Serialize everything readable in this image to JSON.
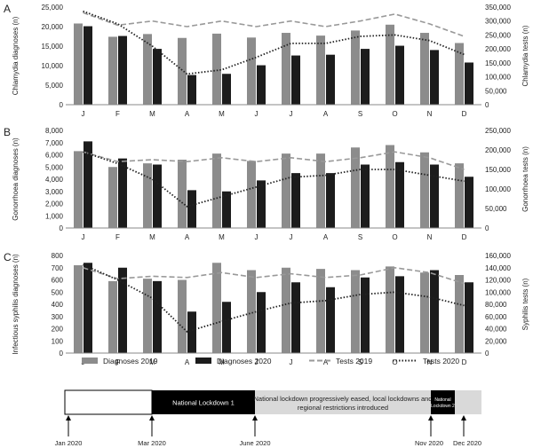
{
  "chart_data": [
    {
      "type": "bar",
      "panel_label": "A",
      "categories": [
        "J",
        "F",
        "M",
        "A",
        "M",
        "J",
        "J",
        "A",
        "S",
        "O",
        "N",
        "D"
      ],
      "ylabel": "Chlamydia diagnoses (n)",
      "y2label": "Chlamydia tests (n)",
      "ylim": [
        0,
        25000
      ],
      "yticks": [
        "0",
        "5,000",
        "10,000",
        "15,000",
        "20,000",
        "25,000"
      ],
      "y2lim": [
        0,
        350000
      ],
      "y2ticks": [
        "0",
        "50,000",
        "100,000",
        "150,000",
        "200,000",
        "250,000",
        "300,000",
        "350,000"
      ],
      "series": [
        {
          "name": "Diagnoses 2019",
          "kind": "bar",
          "axis": "left",
          "color": "#8c8c8c",
          "values": [
            20800,
            17400,
            18100,
            17100,
            18200,
            17200,
            18400,
            17700,
            19000,
            20500,
            18400,
            15800
          ]
        },
        {
          "name": "Diagnoses 2020",
          "kind": "bar",
          "axis": "left",
          "color": "#1c1c1c",
          "values": [
            20100,
            17600,
            14300,
            7600,
            7900,
            10100,
            12600,
            12800,
            14300,
            15100,
            14000,
            10800
          ]
        },
        {
          "name": "Tests 2019",
          "kind": "line",
          "dash": "dashed",
          "axis": "right",
          "color": "#999999",
          "values": [
            330000,
            285000,
            300000,
            280000,
            300000,
            280000,
            300000,
            280000,
            300000,
            325000,
            290000,
            245000
          ]
        },
        {
          "name": "Tests 2020",
          "kind": "line",
          "dash": "dotted",
          "axis": "right",
          "color": "#222222",
          "values": [
            335000,
            290000,
            210000,
            110000,
            125000,
            170000,
            220000,
            220000,
            245000,
            250000,
            230000,
            180000
          ]
        }
      ]
    },
    {
      "type": "bar",
      "panel_label": "B",
      "categories": [
        "J",
        "F",
        "M",
        "A",
        "M",
        "J",
        "J",
        "A",
        "S",
        "O",
        "N",
        "D"
      ],
      "ylabel": "Gonorrhoea diagnoses (n)",
      "y2label": "Gonorrhoea tests (n)",
      "ylim": [
        0,
        8000
      ],
      "yticks": [
        "0",
        "1,000",
        "2,000",
        "3,000",
        "4,000",
        "5,000",
        "6,000",
        "7,000",
        "8,000"
      ],
      "y2lim": [
        0,
        250000
      ],
      "y2ticks": [
        "0",
        "50,000",
        "100,000",
        "150,000",
        "200,000",
        "250,000"
      ],
      "series": [
        {
          "name": "Diagnoses 2019",
          "kind": "bar",
          "axis": "left",
          "color": "#8c8c8c",
          "values": [
            6300,
            5000,
            5300,
            5600,
            6100,
            5500,
            6100,
            6100,
            6600,
            6800,
            6200,
            5300
          ]
        },
        {
          "name": "Diagnoses 2020",
          "kind": "bar",
          "axis": "left",
          "color": "#1c1c1c",
          "values": [
            7100,
            5700,
            5200,
            3100,
            3000,
            3900,
            4500,
            4500,
            5200,
            5400,
            5200,
            4200
          ]
        },
        {
          "name": "Tests 2019",
          "kind": "line",
          "dash": "dashed",
          "axis": "right",
          "color": "#999999",
          "values": [
            195000,
            170000,
            175000,
            170000,
            180000,
            170000,
            180000,
            170000,
            180000,
            195000,
            180000,
            150000
          ]
        },
        {
          "name": "Tests 2020",
          "kind": "line",
          "dash": "dotted",
          "axis": "right",
          "color": "#222222",
          "values": [
            195000,
            165000,
            125000,
            55000,
            80000,
            105000,
            130000,
            135000,
            150000,
            150000,
            135000,
            120000
          ]
        }
      ]
    },
    {
      "type": "bar",
      "panel_label": "C",
      "categories": [
        "J",
        "F",
        "M",
        "A",
        "M",
        "J",
        "J",
        "A",
        "S",
        "O",
        "N",
        "D"
      ],
      "ylabel": "Infectious syphilis diagnoses (n)",
      "y2label": "Syphilis tests (n)",
      "ylim": [
        0,
        800
      ],
      "yticks": [
        "0",
        "100",
        "200",
        "300",
        "400",
        "500",
        "600",
        "700",
        "800"
      ],
      "y2lim": [
        0,
        160000
      ],
      "y2ticks": [
        "0",
        "20,000",
        "40,000",
        "60,000",
        "80,000",
        "100,000",
        "120,000",
        "140,000",
        "160,000"
      ],
      "series": [
        {
          "name": "Diagnoses 2019",
          "kind": "bar",
          "axis": "left",
          "color": "#8c8c8c",
          "values": [
            720,
            590,
            610,
            600,
            740,
            680,
            700,
            690,
            680,
            710,
            660,
            640
          ]
        },
        {
          "name": "Diagnoses 2020",
          "kind": "bar",
          "axis": "left",
          "color": "#1c1c1c",
          "values": [
            740,
            700,
            590,
            340,
            420,
            500,
            580,
            540,
            620,
            630,
            680,
            580
          ]
        },
        {
          "name": "Tests 2019",
          "kind": "line",
          "dash": "dashed",
          "axis": "right",
          "color": "#999999",
          "values": [
            140000,
            122000,
            126000,
            124000,
            132000,
            124000,
            130000,
            124000,
            128000,
            140000,
            132000,
            114000
          ]
        },
        {
          "name": "Tests 2020",
          "kind": "line",
          "dash": "dotted",
          "axis": "right",
          "color": "#222222",
          "values": [
            145000,
            120000,
            90000,
            35000,
            52000,
            68000,
            82000,
            86000,
            96000,
            100000,
            92000,
            78000
          ]
        }
      ]
    }
  ],
  "legend": {
    "items": [
      {
        "label": "Diagnoses 2019",
        "kind": "bar",
        "color": "#8c8c8c"
      },
      {
        "label": "Diagnoses 2020",
        "kind": "bar",
        "color": "#1c1c1c"
      },
      {
        "label": "Tests 2019",
        "kind": "line",
        "dash": "dashed",
        "color": "#999999"
      },
      {
        "label": "Tests 2020",
        "kind": "line",
        "dash": "dotted",
        "color": "#222222"
      }
    ]
  },
  "timeline": {
    "segments": [
      {
        "label": "",
        "fill": "#ffffff",
        "text_color": "#222222"
      },
      {
        "label": "National Lockdown 1",
        "fill": "#000000",
        "text_color": "#ffffff"
      },
      {
        "label_lines": [
          "National lockdown progressively eased, local lockdowns and",
          "regional restrictions introduced"
        ],
        "fill": "#d9d9d9",
        "text_color": "#222222"
      },
      {
        "label_lines": [
          "National",
          "Lockdown 2"
        ],
        "fill": "#000000",
        "text_color": "#ffffff"
      },
      {
        "label": "",
        "fill": "#d9d9d9",
        "text_color": "#222222"
      }
    ],
    "markers": [
      "Jan 2020",
      "Mar 2020",
      "June 2020",
      "Nov 2020",
      "Dec 2020"
    ]
  }
}
